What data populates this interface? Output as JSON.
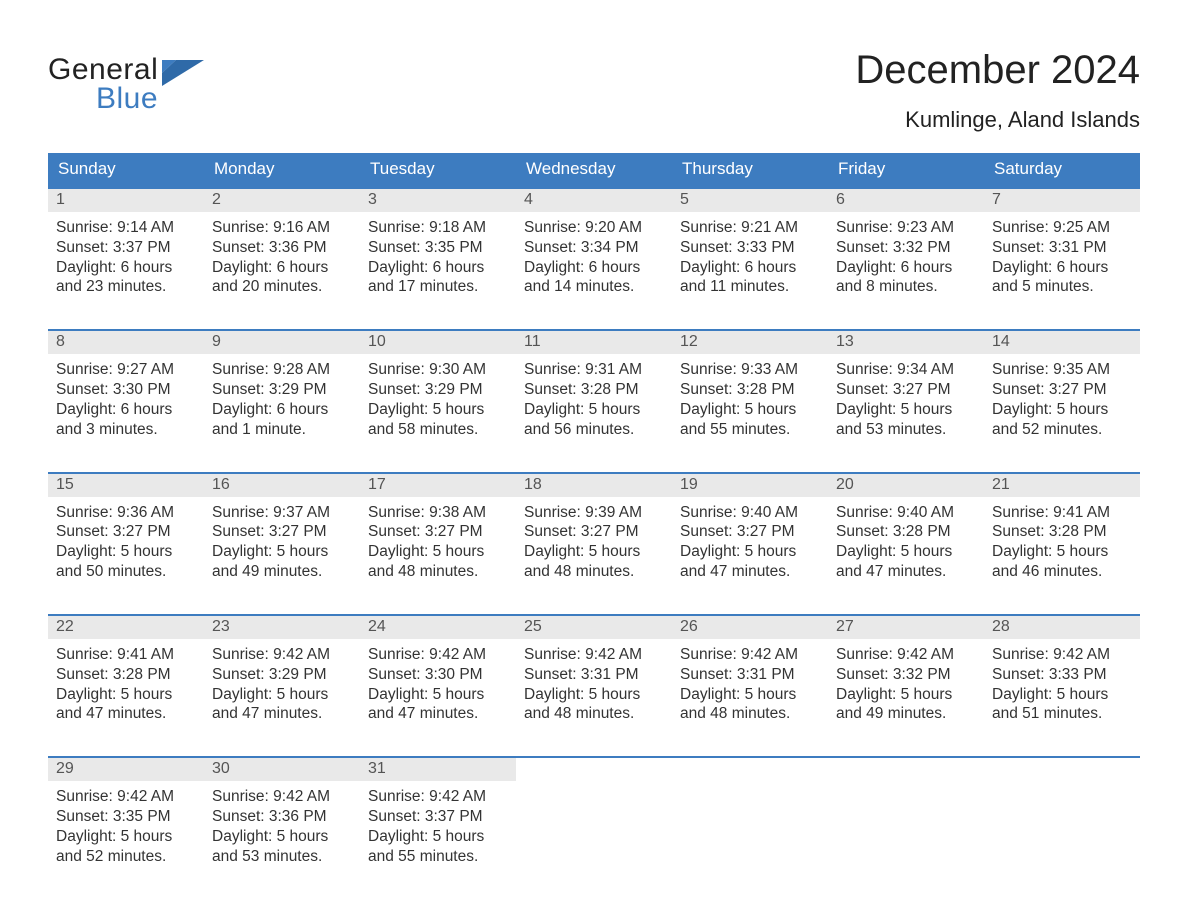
{
  "brand": {
    "name_part1": "General",
    "name_part2": "Blue",
    "color_primary": "#3d7cc0"
  },
  "title": {
    "month_year": "December 2024",
    "location": "Kumlinge, Aland Islands"
  },
  "styling": {
    "header_bg": "#3d7cc0",
    "header_text_color": "#ffffff",
    "daynum_bar_bg": "#e9e9e9",
    "week_border_color": "#3d7cc0",
    "background": "#ffffff",
    "body_font_size_pt": 12,
    "title_font_size_pt": 30,
    "location_font_size_pt": 16
  },
  "labels": {
    "sunrise": "Sunrise",
    "sunset": "Sunset",
    "daylight": "Daylight"
  },
  "days_of_week": [
    "Sunday",
    "Monday",
    "Tuesday",
    "Wednesday",
    "Thursday",
    "Friday",
    "Saturday"
  ],
  "weeks": [
    [
      {
        "n": 1,
        "sunrise": "9:14 AM",
        "sunset": "3:37 PM",
        "daylight": "6 hours and 23 minutes."
      },
      {
        "n": 2,
        "sunrise": "9:16 AM",
        "sunset": "3:36 PM",
        "daylight": "6 hours and 20 minutes."
      },
      {
        "n": 3,
        "sunrise": "9:18 AM",
        "sunset": "3:35 PM",
        "daylight": "6 hours and 17 minutes."
      },
      {
        "n": 4,
        "sunrise": "9:20 AM",
        "sunset": "3:34 PM",
        "daylight": "6 hours and 14 minutes."
      },
      {
        "n": 5,
        "sunrise": "9:21 AM",
        "sunset": "3:33 PM",
        "daylight": "6 hours and 11 minutes."
      },
      {
        "n": 6,
        "sunrise": "9:23 AM",
        "sunset": "3:32 PM",
        "daylight": "6 hours and 8 minutes."
      },
      {
        "n": 7,
        "sunrise": "9:25 AM",
        "sunset": "3:31 PM",
        "daylight": "6 hours and 5 minutes."
      }
    ],
    [
      {
        "n": 8,
        "sunrise": "9:27 AM",
        "sunset": "3:30 PM",
        "daylight": "6 hours and 3 minutes."
      },
      {
        "n": 9,
        "sunrise": "9:28 AM",
        "sunset": "3:29 PM",
        "daylight": "6 hours and 1 minute."
      },
      {
        "n": 10,
        "sunrise": "9:30 AM",
        "sunset": "3:29 PM",
        "daylight": "5 hours and 58 minutes."
      },
      {
        "n": 11,
        "sunrise": "9:31 AM",
        "sunset": "3:28 PM",
        "daylight": "5 hours and 56 minutes."
      },
      {
        "n": 12,
        "sunrise": "9:33 AM",
        "sunset": "3:28 PM",
        "daylight": "5 hours and 55 minutes."
      },
      {
        "n": 13,
        "sunrise": "9:34 AM",
        "sunset": "3:27 PM",
        "daylight": "5 hours and 53 minutes."
      },
      {
        "n": 14,
        "sunrise": "9:35 AM",
        "sunset": "3:27 PM",
        "daylight": "5 hours and 52 minutes."
      }
    ],
    [
      {
        "n": 15,
        "sunrise": "9:36 AM",
        "sunset": "3:27 PM",
        "daylight": "5 hours and 50 minutes."
      },
      {
        "n": 16,
        "sunrise": "9:37 AM",
        "sunset": "3:27 PM",
        "daylight": "5 hours and 49 minutes."
      },
      {
        "n": 17,
        "sunrise": "9:38 AM",
        "sunset": "3:27 PM",
        "daylight": "5 hours and 48 minutes."
      },
      {
        "n": 18,
        "sunrise": "9:39 AM",
        "sunset": "3:27 PM",
        "daylight": "5 hours and 48 minutes."
      },
      {
        "n": 19,
        "sunrise": "9:40 AM",
        "sunset": "3:27 PM",
        "daylight": "5 hours and 47 minutes."
      },
      {
        "n": 20,
        "sunrise": "9:40 AM",
        "sunset": "3:28 PM",
        "daylight": "5 hours and 47 minutes."
      },
      {
        "n": 21,
        "sunrise": "9:41 AM",
        "sunset": "3:28 PM",
        "daylight": "5 hours and 46 minutes."
      }
    ],
    [
      {
        "n": 22,
        "sunrise": "9:41 AM",
        "sunset": "3:28 PM",
        "daylight": "5 hours and 47 minutes."
      },
      {
        "n": 23,
        "sunrise": "9:42 AM",
        "sunset": "3:29 PM",
        "daylight": "5 hours and 47 minutes."
      },
      {
        "n": 24,
        "sunrise": "9:42 AM",
        "sunset": "3:30 PM",
        "daylight": "5 hours and 47 minutes."
      },
      {
        "n": 25,
        "sunrise": "9:42 AM",
        "sunset": "3:31 PM",
        "daylight": "5 hours and 48 minutes."
      },
      {
        "n": 26,
        "sunrise": "9:42 AM",
        "sunset": "3:31 PM",
        "daylight": "5 hours and 48 minutes."
      },
      {
        "n": 27,
        "sunrise": "9:42 AM",
        "sunset": "3:32 PM",
        "daylight": "5 hours and 49 minutes."
      },
      {
        "n": 28,
        "sunrise": "9:42 AM",
        "sunset": "3:33 PM",
        "daylight": "5 hours and 51 minutes."
      }
    ],
    [
      {
        "n": 29,
        "sunrise": "9:42 AM",
        "sunset": "3:35 PM",
        "daylight": "5 hours and 52 minutes."
      },
      {
        "n": 30,
        "sunrise": "9:42 AM",
        "sunset": "3:36 PM",
        "daylight": "5 hours and 53 minutes."
      },
      {
        "n": 31,
        "sunrise": "9:42 AM",
        "sunset": "3:37 PM",
        "daylight": "5 hours and 55 minutes."
      },
      null,
      null,
      null,
      null
    ]
  ]
}
